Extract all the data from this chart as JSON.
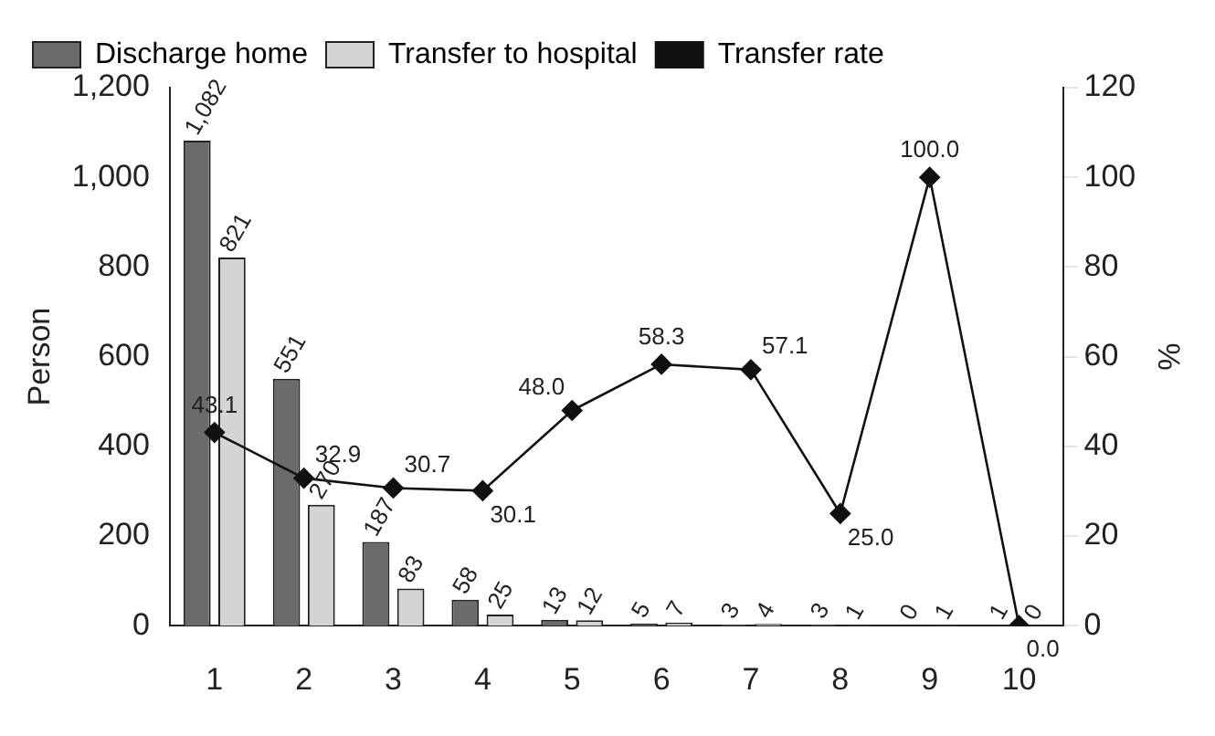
{
  "chart_data": {
    "type": "bar",
    "xlabel": null,
    "ylabel": "Person",
    "y2label": "%",
    "categories": [
      "1",
      "2",
      "3",
      "4",
      "5",
      "6",
      "7",
      "8",
      "9",
      "10"
    ],
    "series": [
      {
        "name": "Discharge home",
        "color": "#6b6b6b",
        "values": [
          1082,
          551,
          187,
          58,
          13,
          5,
          3,
          3,
          0,
          1
        ],
        "value_labels": [
          "1,082",
          "551",
          "187",
          "58",
          "13",
          "5",
          "3",
          "3",
          "0",
          "1"
        ]
      },
      {
        "name": "Transfer to hospital",
        "color": "#d4d4d4",
        "values": [
          821,
          270,
          83,
          25,
          12,
          7,
          4,
          1,
          1,
          0
        ],
        "value_labels": [
          "821",
          "270",
          "83",
          "25",
          "12",
          "7",
          "4",
          "1",
          "1",
          "0"
        ]
      },
      {
        "name": "Transfer rate",
        "type": "line",
        "axis": "y2",
        "color": "#111111",
        "marker": "diamond",
        "values": [
          43.1,
          32.9,
          30.7,
          30.1,
          48.0,
          58.3,
          57.1,
          25.0,
          100.0,
          0.0
        ],
        "value_labels": [
          "43.1",
          "32.9",
          "30.7",
          "30.1",
          "48.0",
          "58.3",
          "57.1",
          "25.0",
          "100.0",
          "0.0"
        ]
      }
    ],
    "ylim": [
      0,
      1200
    ],
    "yticks": [
      {
        "value": 0,
        "label": "0"
      },
      {
        "value": 200,
        "label": "200"
      },
      {
        "value": 400,
        "label": "400"
      },
      {
        "value": 600,
        "label": "600"
      },
      {
        "value": 800,
        "label": "800"
      },
      {
        "value": 1000,
        "label": "1,000"
      },
      {
        "value": 1200,
        "label": "1,200"
      }
    ],
    "y2lim": [
      0,
      120
    ],
    "y2ticks": [
      0,
      20,
      40,
      60,
      80,
      100,
      120
    ],
    "grid": false,
    "legend": "top left"
  }
}
